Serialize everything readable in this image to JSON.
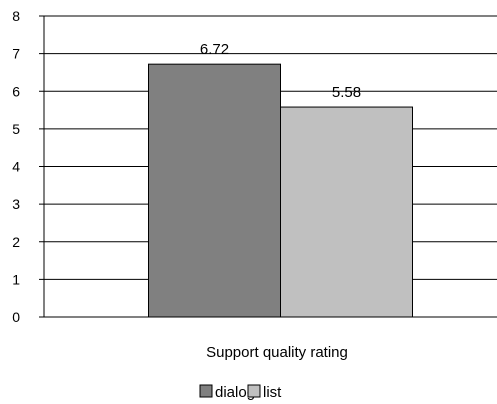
{
  "chart_data": {
    "type": "bar",
    "categories": [
      "Support quality rating"
    ],
    "series": [
      {
        "name": "dialog",
        "values": [
          6.72
        ],
        "color": "#808080"
      },
      {
        "name": "list",
        "values": [
          5.58
        ],
        "color": "#c0c0c0"
      }
    ],
    "data_labels": [
      "6.72",
      "5.58"
    ],
    "xlabel": "Support quality rating",
    "ylabel": "",
    "ylim": [
      0,
      8
    ],
    "yticks": [
      0,
      1,
      2,
      3,
      4,
      5,
      6,
      7,
      8
    ],
    "grid": true,
    "legend": "bottom"
  }
}
